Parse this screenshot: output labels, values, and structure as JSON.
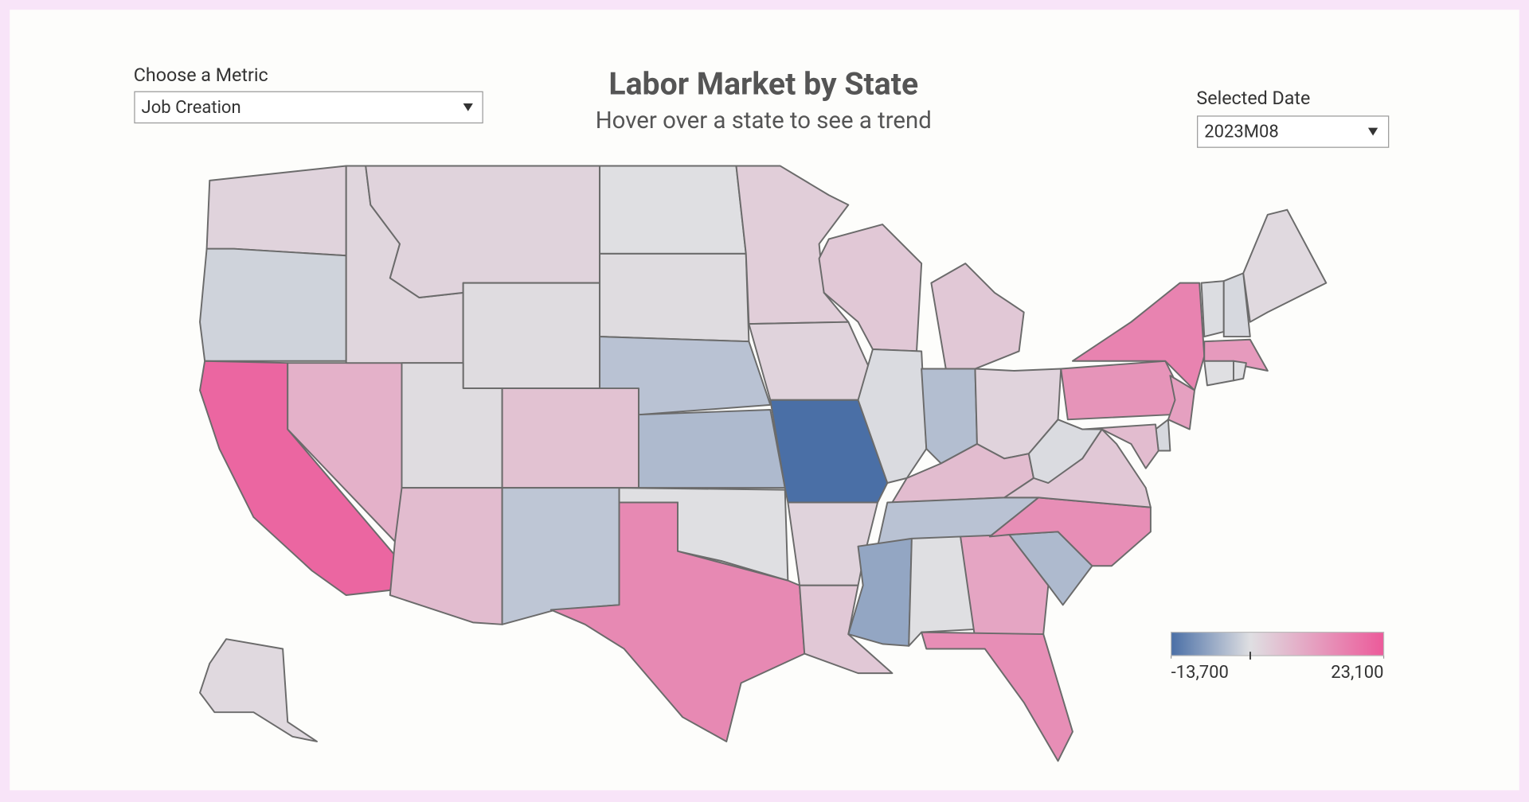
{
  "controls": {
    "metric": {
      "label": "Choose a Metric",
      "value": "Job Creation"
    },
    "date": {
      "label": "Selected Date",
      "value": "2023M08"
    }
  },
  "chart_data": {
    "type": "choropleth",
    "title": "Labor Market by State",
    "subtitle": "Hover over a state to see a trend",
    "categories": [
      null,
      null,
      null,
      null,
      null,
      null,
      null,
      null,
      null,
      null,
      null,
      null,
      null,
      null,
      null,
      null,
      null,
      null,
      null,
      null,
      null,
      null,
      null,
      null,
      null,
      null,
      null,
      null,
      null,
      null,
      null,
      null,
      null,
      null,
      null,
      null,
      null,
      null,
      null,
      null,
      null,
      null,
      null,
      null,
      null,
      null,
      null,
      null,
      null
    ],
    "values": [
      2000,
      -1500,
      21000,
      8000,
      1500,
      2000,
      500,
      500,
      5000,
      6000,
      -3000,
      0,
      500,
      -3500,
      -4500,
      0,
      15000,
      3000,
      2000,
      -13700,
      2000,
      4000,
      4000,
      -500,
      4000,
      -4000,
      2000,
      6000,
      -3500,
      -7000,
      0,
      10000,
      14000,
      -4500,
      14000,
      4000,
      -500,
      13000,
      16000,
      11000,
      -800,
      6000,
      -300,
      -800,
      1000,
      12000,
      0,
      0,
      1000
    ],
    "colorscale": {
      "lim": [
        -13700,
        23100
      ],
      "center": 0,
      "colors": [
        "#4a6fa6",
        "#dfdfe2",
        "#ec5a9a"
      ],
      "ticks": [
        {
          "value": -13700,
          "label": "-13,700"
        },
        {
          "value": 23100,
          "label": "23,100"
        }
      ]
    }
  }
}
